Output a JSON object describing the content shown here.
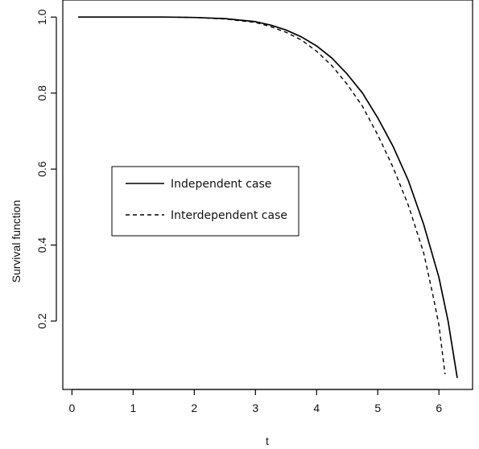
{
  "chart_data": {
    "type": "line",
    "title": "",
    "xlabel": "t",
    "ylabel": "Survival function",
    "xlim": [
      -0.15,
      6.55
    ],
    "ylim": [
      0.02,
      1.045
    ],
    "xticks": [
      0,
      1,
      2,
      3,
      4,
      5,
      6
    ],
    "yticks": [
      0.2,
      0.4,
      0.6,
      0.8,
      1.0
    ],
    "xtick_labels": [
      "0",
      "1",
      "2",
      "3",
      "4",
      "5",
      "6"
    ],
    "ytick_labels": [
      "0.2",
      "0.4",
      "0.6",
      "0.8",
      "1.0"
    ],
    "grid": false,
    "legend_position": "center-left",
    "series": [
      {
        "name": "Independent case",
        "style": "solid",
        "color": "#000000",
        "points": [
          [
            0.1,
            1.0
          ],
          [
            1.0,
            1.0
          ],
          [
            1.5,
            1.0
          ],
          [
            2.0,
            0.999
          ],
          [
            2.5,
            0.996
          ],
          [
            3.0,
            0.988
          ],
          [
            3.25,
            0.979
          ],
          [
            3.5,
            0.966
          ],
          [
            3.75,
            0.948
          ],
          [
            4.0,
            0.924
          ],
          [
            4.25,
            0.892
          ],
          [
            4.5,
            0.85
          ],
          [
            4.75,
            0.8
          ],
          [
            5.0,
            0.735
          ],
          [
            5.25,
            0.66
          ],
          [
            5.5,
            0.57
          ],
          [
            5.75,
            0.455
          ],
          [
            6.0,
            0.315
          ],
          [
            6.15,
            0.2
          ],
          [
            6.3,
            0.05
          ]
        ]
      },
      {
        "name": "Interdependent case",
        "style": "dashed",
        "color": "#000000",
        "points": [
          [
            1.6,
            1.0
          ],
          [
            2.0,
            0.999
          ],
          [
            2.5,
            0.995
          ],
          [
            3.0,
            0.986
          ],
          [
            3.25,
            0.975
          ],
          [
            3.5,
            0.96
          ],
          [
            3.75,
            0.94
          ],
          [
            4.0,
            0.91
          ],
          [
            4.25,
            0.872
          ],
          [
            4.5,
            0.823
          ],
          [
            4.75,
            0.765
          ],
          [
            5.0,
            0.69
          ],
          [
            5.25,
            0.605
          ],
          [
            5.5,
            0.505
          ],
          [
            5.75,
            0.38
          ],
          [
            5.9,
            0.27
          ],
          [
            6.0,
            0.19
          ],
          [
            6.1,
            0.06
          ]
        ]
      }
    ]
  }
}
